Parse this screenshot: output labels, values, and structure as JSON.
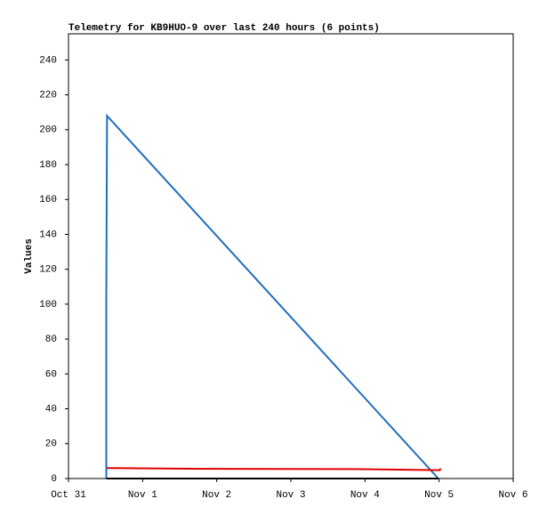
{
  "chart_data": {
    "type": "line",
    "title": "Telemetry for KB9HUO-9 over last 240 hours (6 points)",
    "y_label": "Values",
    "series": [
      {
        "color": "#1f6fc0",
        "x": [
          0.51,
          0.51,
          0.52,
          4.99
        ],
        "values": [
          0,
          104,
          208,
          0
        ]
      },
      {
        "color": "#e00000",
        "x": [
          0.52,
          1.65,
          3.88,
          5.01,
          5.02
        ],
        "values": [
          6,
          5.6,
          5.4,
          4.8,
          5.8
        ]
      },
      {
        "color": "#000000",
        "x": [
          0.51,
          4.99
        ],
        "values": [
          0,
          0
        ]
      }
    ],
    "xlim": [
      0,
      6
    ],
    "xticks": [
      {
        "value": 0,
        "label": "Oct 31"
      },
      {
        "value": 1,
        "label": "Nov 1"
      },
      {
        "value": 2,
        "label": "Nov 2"
      },
      {
        "value": 3,
        "label": "Nov 3"
      },
      {
        "value": 4,
        "label": "Nov 4"
      },
      {
        "value": 5,
        "label": "Nov 5"
      },
      {
        "value": 6,
        "label": "Nov 6"
      }
    ],
    "ylim": [
      0,
      255
    ],
    "yticks": [
      0,
      20,
      40,
      60,
      80,
      100,
      120,
      140,
      160,
      180,
      200,
      220,
      240
    ]
  }
}
